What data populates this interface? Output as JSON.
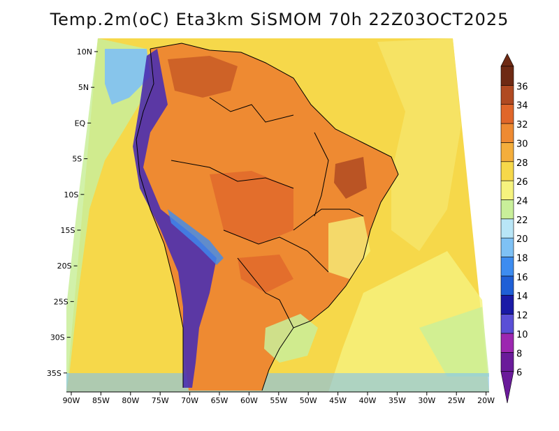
{
  "title": "Temp.2m(oC) Eta3km SiSMOM 70h 22Z03OCT2025",
  "lat_labels": [
    "10N",
    "5N",
    "EQ",
    "5S",
    "10S",
    "15S",
    "20S",
    "25S",
    "30S",
    "35S"
  ],
  "lon_labels": [
    "90W",
    "85W",
    "80W",
    "75W",
    "70W",
    "65W",
    "60W",
    "55W",
    "50W",
    "45W",
    "40W",
    "35W",
    "30W",
    "25W",
    "20W"
  ],
  "colorbar": {
    "labels": [
      "6",
      "8",
      "10",
      "12",
      "14",
      "16",
      "18",
      "20",
      "22",
      "24",
      "26",
      "28",
      "30",
      "32",
      "34",
      "36"
    ],
    "colors": [
      "#6a1b9a",
      "#9c27b0",
      "#5a4fd6",
      "#1a1aa6",
      "#1f5fd6",
      "#3d8cf0",
      "#7ec1f5",
      "#b9e6f7",
      "#c9ef9a",
      "#f6f37e",
      "#f6d84a",
      "#f4ae3c",
      "#ee8a32",
      "#e0662a",
      "#b04a22",
      "#6e2a14"
    ]
  },
  "colors": {
    "ocean_warm": "#f6d84a",
    "ocean_mild": "#f6e66a",
    "land_hot": "#ee8a32",
    "land_very_hot": "#c85a26",
    "andes_cold": "#4a2fb0",
    "border": "#000000"
  }
}
